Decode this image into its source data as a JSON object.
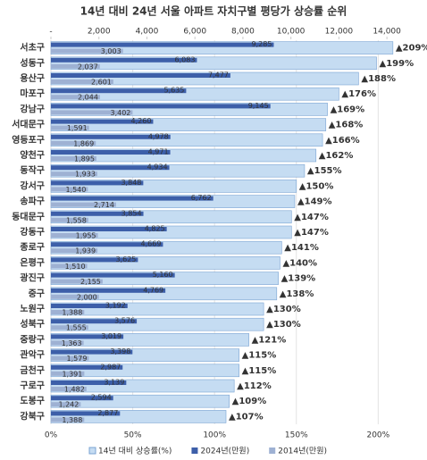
{
  "chart_data": {
    "type": "bar",
    "orientation": "horizontal",
    "title": "14년 대비 24년 서울 아파트 자치구별 평당가 상승률 순위",
    "categories": [
      "서초구",
      "성동구",
      "용산구",
      "마포구",
      "강남구",
      "서대문구",
      "영등포구",
      "양천구",
      "동작구",
      "강서구",
      "송파구",
      "동대문구",
      "강동구",
      "종로구",
      "은평구",
      "광진구",
      "중구",
      "노원구",
      "성북구",
      "중랑구",
      "관악구",
      "금천구",
      "구로구",
      "도봉구",
      "강북구"
    ],
    "series": [
      {
        "name": "14년 대비 상승률(%)",
        "color": "#c5dcf2",
        "axis": "x2",
        "values": [
          209,
          199,
          188,
          176,
          169,
          168,
          166,
          162,
          155,
          150,
          149,
          147,
          147,
          141,
          140,
          139,
          138,
          130,
          130,
          121,
          115,
          115,
          112,
          109,
          107
        ],
        "value_labels": [
          "▲209%",
          "▲199%",
          "▲188%",
          "▲176%",
          "▲169%",
          "▲168%",
          "▲166%",
          "▲162%",
          "▲155%",
          "▲150%",
          "▲149%",
          "▲147%",
          "▲147%",
          "▲141%",
          "▲140%",
          "▲139%",
          "▲138%",
          "▲130%",
          "▲130%",
          "▲121%",
          "▲115%",
          "▲115%",
          "▲112%",
          "▲109%",
          "▲107%"
        ]
      },
      {
        "name": "2024년(만원)",
        "color": "#3d5fa9",
        "values": [
          9285,
          6083,
          7477,
          5635,
          9145,
          4260,
          4978,
          4971,
          4934,
          3848,
          6762,
          3854,
          4825,
          4669,
          3625,
          5160,
          4769,
          3192,
          3576,
          3019,
          3398,
          2987,
          3139,
          2594,
          2877
        ],
        "value_labels": [
          "9,285",
          "6,083",
          "7,477",
          "5,635",
          "9,145",
          "4,260",
          "4,978",
          "4,971",
          "4,934",
          "3,848",
          "6,762",
          "3,854",
          "4,825",
          "4,669",
          "3,625",
          "5,160",
          "4,769",
          "3,192",
          "3,576",
          "3,019",
          "3,398",
          "2,987",
          "3,139",
          "2,594",
          "2,877"
        ]
      },
      {
        "name": "2014년(만원)",
        "color": "#9eb1d3",
        "values": [
          3003,
          2037,
          2601,
          2044,
          3402,
          1591,
          1869,
          1895,
          1933,
          1540,
          2714,
          1558,
          1955,
          1939,
          1510,
          2155,
          2000,
          1388,
          1555,
          1363,
          1579,
          1391,
          1482,
          1242,
          1388
        ],
        "value_labels": [
          "3,003",
          "2,037",
          "2,601",
          "2,044",
          "3,402",
          "1,591",
          "1,869",
          "1,895",
          "1,933",
          "1,540",
          "2,714",
          "1,558",
          "1,955",
          "1,939",
          "1,510",
          "2,155",
          "2,000",
          "1,388",
          "1,555",
          "1,363",
          "1,579",
          "1,391",
          "1,482",
          "1,242",
          "1,388"
        ]
      }
    ],
    "xlim": [
      0,
      15000
    ],
    "xticks": [
      {
        "value": 0,
        "label": "-"
      },
      {
        "value": 2000,
        "label": "2,000"
      },
      {
        "value": 4000,
        "label": "4,000"
      },
      {
        "value": 6000,
        "label": "6,000"
      },
      {
        "value": 8000,
        "label": "8,000"
      },
      {
        "value": 10000,
        "label": "10,000"
      },
      {
        "value": 12000,
        "label": "12,000"
      },
      {
        "value": 14000,
        "label": "14,000"
      }
    ],
    "x2lim": [
      0,
      220
    ],
    "x2ticks": [
      {
        "value": 0,
        "label": "0%"
      },
      {
        "value": 50,
        "label": "50%"
      },
      {
        "value": 100,
        "label": "100%"
      },
      {
        "value": 150,
        "label": "150%"
      },
      {
        "value": 200,
        "label": "200%"
      }
    ],
    "grid": true,
    "legend": "bottom",
    "value_label_color": "#e0201b"
  }
}
